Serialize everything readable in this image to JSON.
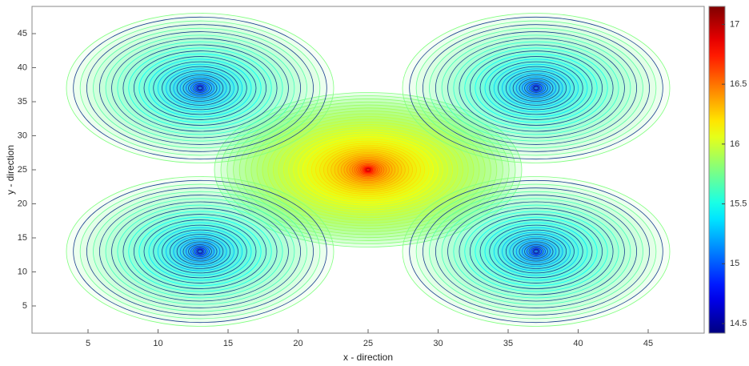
{
  "chart_data": {
    "type": "contour",
    "x_label": "x - direction",
    "y_label": "y - direction",
    "xlim": [
      1,
      49
    ],
    "ylim": [
      1,
      49
    ],
    "xticks": [
      5,
      10,
      15,
      20,
      25,
      30,
      35,
      40,
      45
    ],
    "yticks": [
      5,
      10,
      15,
      20,
      25,
      30,
      35,
      40,
      45
    ],
    "colormap": "jet",
    "clim": [
      14.42,
      17.15
    ],
    "cticks": [
      14.5,
      15,
      15.5,
      16,
      16.5,
      17
    ],
    "x": [
      25,
      13,
      37,
      13,
      37
    ],
    "y": [
      25,
      37,
      37,
      13,
      13
    ],
    "values": [
      17.1,
      14.4,
      14.4,
      14.4,
      14.4
    ]
  }
}
